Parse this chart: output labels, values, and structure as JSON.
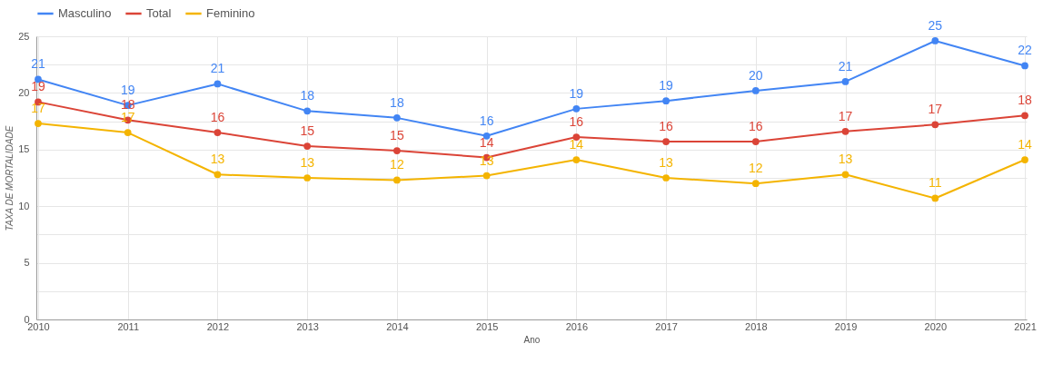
{
  "chart_data": {
    "type": "line",
    "xlabel": "Ano",
    "ylabel": "TAXA DE MORTALIDADE",
    "categories": [
      "2010",
      "2011",
      "2012",
      "2013",
      "2014",
      "2015",
      "2016",
      "2017",
      "2018",
      "2019",
      "2020",
      "2021"
    ],
    "series": [
      {
        "name": "Masculino",
        "color": "#4285f4",
        "values": [
          21.2,
          18.9,
          20.8,
          18.4,
          17.8,
          16.2,
          18.6,
          19.3,
          20.2,
          21.0,
          24.6,
          22.4
        ],
        "value_labels": [
          "21",
          "19",
          "21",
          "18",
          "18",
          "16",
          "19",
          "19",
          "20",
          "21",
          "25",
          "22"
        ]
      },
      {
        "name": "Total",
        "color": "#db4437",
        "values": [
          19.2,
          17.6,
          16.5,
          15.3,
          14.9,
          14.3,
          16.1,
          15.7,
          15.7,
          16.6,
          17.2,
          18.0
        ],
        "value_labels": [
          "19",
          "18",
          "16",
          "15",
          "15",
          "14",
          "16",
          "16",
          "16",
          "17",
          "17",
          "18"
        ]
      },
      {
        "name": "Feminino",
        "color": "#f4b400",
        "values": [
          17.3,
          16.5,
          12.8,
          12.5,
          12.3,
          12.7,
          14.1,
          12.5,
          12.0,
          12.8,
          10.7,
          14.1
        ],
        "value_labels": [
          "17",
          "17",
          "13",
          "13",
          "12",
          "13",
          "14",
          "13",
          "12",
          "13",
          "11",
          "14"
        ]
      }
    ],
    "ylim": [
      0,
      25
    ],
    "yticks": [
      0,
      {
        "value": 2.5,
        "label": null
      },
      5,
      {
        "value": 7.5,
        "label": null
      },
      10,
      {
        "value": 12.5,
        "label": null
      },
      15,
      {
        "value": 17.5,
        "label": null
      },
      20,
      {
        "value": 22.5,
        "label": null
      },
      25
    ],
    "grid": true,
    "legend": "top left",
    "marker": "circle",
    "line_style": "solid"
  }
}
